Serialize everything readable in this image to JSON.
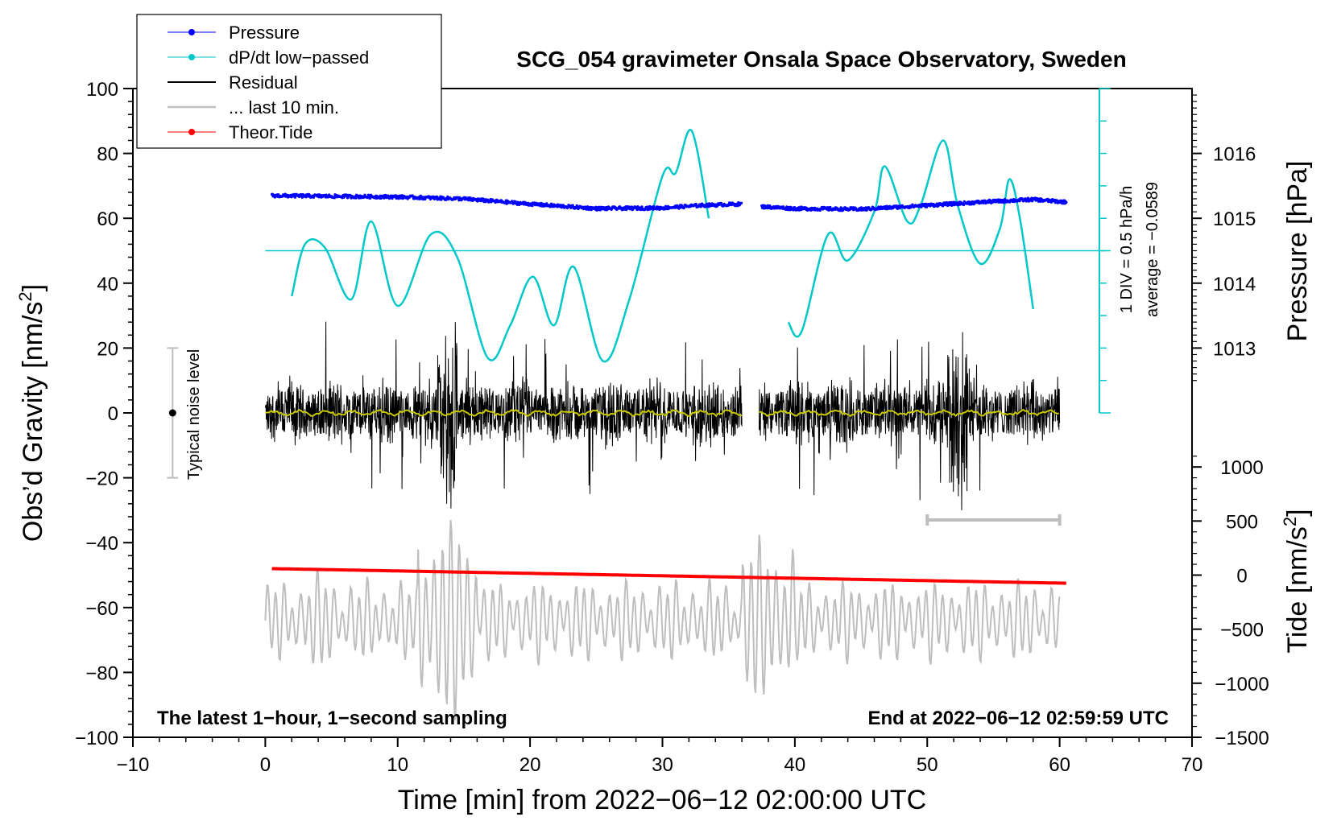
{
  "chart_data": {
    "type": "line",
    "title": "SCG_054 gravimeter Onsala Space Observatory, Sweden",
    "xlabel": "Time [min] from 2022−06−12 02:00:00 UTC",
    "ylabel_left": "Obs’d Gravity [nm/s²]",
    "ylabel_left_main": "Obs’d Gravity [nm/s",
    "ylabel_left_sup": "2",
    "ylabel_left_end": "]",
    "ylabel_right_pressure": "Pressure [hPa]",
    "ylabel_right_tide": "Tide [nm/s²]",
    "ylabel_right_tide_main": "Tide [nm/s",
    "ylabel_right_tide_sup": "2",
    "ylabel_right_tide_end": "]",
    "xlim": [
      -10,
      70
    ],
    "ylim": [
      -100,
      100
    ],
    "x_ticks": [
      -10,
      0,
      10,
      20,
      30,
      40,
      50,
      60,
      70
    ],
    "x_tick_labels": [
      "−10",
      "0",
      "10",
      "20",
      "30",
      "40",
      "50",
      "60",
      "70"
    ],
    "y_ticks": [
      -100,
      -80,
      -60,
      -40,
      -20,
      0,
      20,
      40,
      60,
      80,
      100
    ],
    "y_tick_labels": [
      "−100",
      "−80",
      "−60",
      "−40",
      "−20",
      "0",
      "20",
      "40",
      "60",
      "80",
      "100"
    ],
    "pressure_axis": {
      "ticks": [
        1013,
        1014,
        1015,
        1016
      ],
      "tick_labels": [
        "1013",
        "1014",
        "1015",
        "1016"
      ],
      "map_gravity": [
        20,
        40,
        60,
        80
      ]
    },
    "tide_axis": {
      "ticks": [
        -1500,
        -1000,
        -500,
        0,
        500,
        1000
      ],
      "tick_labels": [
        "−1500",
        "−1000",
        "−500",
        "0",
        "500",
        "1000"
      ],
      "map_gravity": [
        -100,
        -83.33,
        -66.67,
        -50,
        -33.33,
        -16.67
      ]
    },
    "legend": [
      {
        "label": "Pressure",
        "color": "#0000ff",
        "marker": true
      },
      {
        "label": "dP/dt low−passed",
        "color": "#00c8c8",
        "marker": true
      },
      {
        "label": "Residual",
        "color": "#000000",
        "marker": false
      },
      {
        "label": "... last 10 min.",
        "color": "#bebebe",
        "marker": false
      },
      {
        "label": "Theor.Tide",
        "color": "#ff0000",
        "marker": true
      }
    ],
    "series": [
      {
        "name": "Pressure",
        "color": "#0000ff",
        "unit": "hPa",
        "segments": [
          {
            "x": [
              0.5,
              5,
              10,
              15,
              20,
              25,
              30,
              33,
              36
            ],
            "y": [
              1015.35,
              1015.34,
              1015.33,
              1015.3,
              1015.22,
              1015.15,
              1015.16,
              1015.2,
              1015.22
            ]
          },
          {
            "x": [
              37.5,
              40,
              45,
              50,
              55,
              58,
              60.5
            ],
            "y": [
              1015.18,
              1015.15,
              1015.14,
              1015.2,
              1015.26,
              1015.29,
              1015.25
            ]
          }
        ]
      },
      {
        "name": "dP/dt low−passed",
        "color": "#00c8c8",
        "unit": "hPa/h",
        "reference_line_y": 50,
        "segments": [
          {
            "x": [
              2,
              3,
              4.5,
              6.5,
              8,
              10,
              12.5,
              14.5,
              16.8,
              18.5,
              20.2,
              21.8,
              23.3,
              25.5,
              27.5,
              30,
              31,
              32.2,
              33.5
            ],
            "y": [
              36,
              52,
              51,
              35,
              59,
              33,
              55,
              48,
              17,
              27,
              42,
              27,
              45,
              16,
              35,
              73,
              74,
              87,
              60
            ]
          },
          {
            "x": [
              39.5,
              40.5,
              42.5,
              44,
              46,
              46.8,
              48.5,
              49.5,
              51.2,
              52.3,
              54,
              55.5,
              56.2,
              57,
              58
            ],
            "y": [
              28,
              25,
              55,
              47,
              62,
              76,
              59,
              64,
              84,
              64,
              46,
              57,
              72,
              60,
              32
            ]
          }
        ]
      },
      {
        "name": "Residual",
        "color": "#000000",
        "unit": "nm/s²",
        "segments": [
          {
            "x_range": [
              0,
              36
            ],
            "center": 0,
            "typical_amplitude": 15,
            "max": 31,
            "min": -35
          },
          {
            "x_range": [
              37.3,
              60
            ],
            "center": 0,
            "typical_amplitude": 15,
            "max": 34,
            "min": -38
          }
        ]
      },
      {
        "name": "... last 10 min.",
        "color": "#bebebe",
        "x_range": [
          0,
          60
        ],
        "center": -64,
        "min": -99,
        "max": -33
      },
      {
        "name": "Theor.Tide",
        "color": "#ff0000",
        "unit": "nm/s²",
        "x": [
          0.5,
          60.5
        ],
        "y": [
          -48,
          -52.5
        ]
      }
    ],
    "noise_level": {
      "label": "Typical noise level",
      "x": -7,
      "center": 0,
      "range": [
        -20,
        20
      ]
    },
    "last10_bar": {
      "x_range": [
        50,
        60
      ],
      "y": -33
    },
    "dpdt_scale": {
      "line1": "1 DIV = 0.5 hPa/h",
      "line2": "average = −0.0589",
      "x": 63,
      "y_range": [
        0,
        100
      ]
    },
    "annotations": {
      "bottom_left": "The latest 1−hour, 1−second sampling",
      "bottom_right": "End at 2022−06−12 02:59:59 UTC"
    }
  }
}
